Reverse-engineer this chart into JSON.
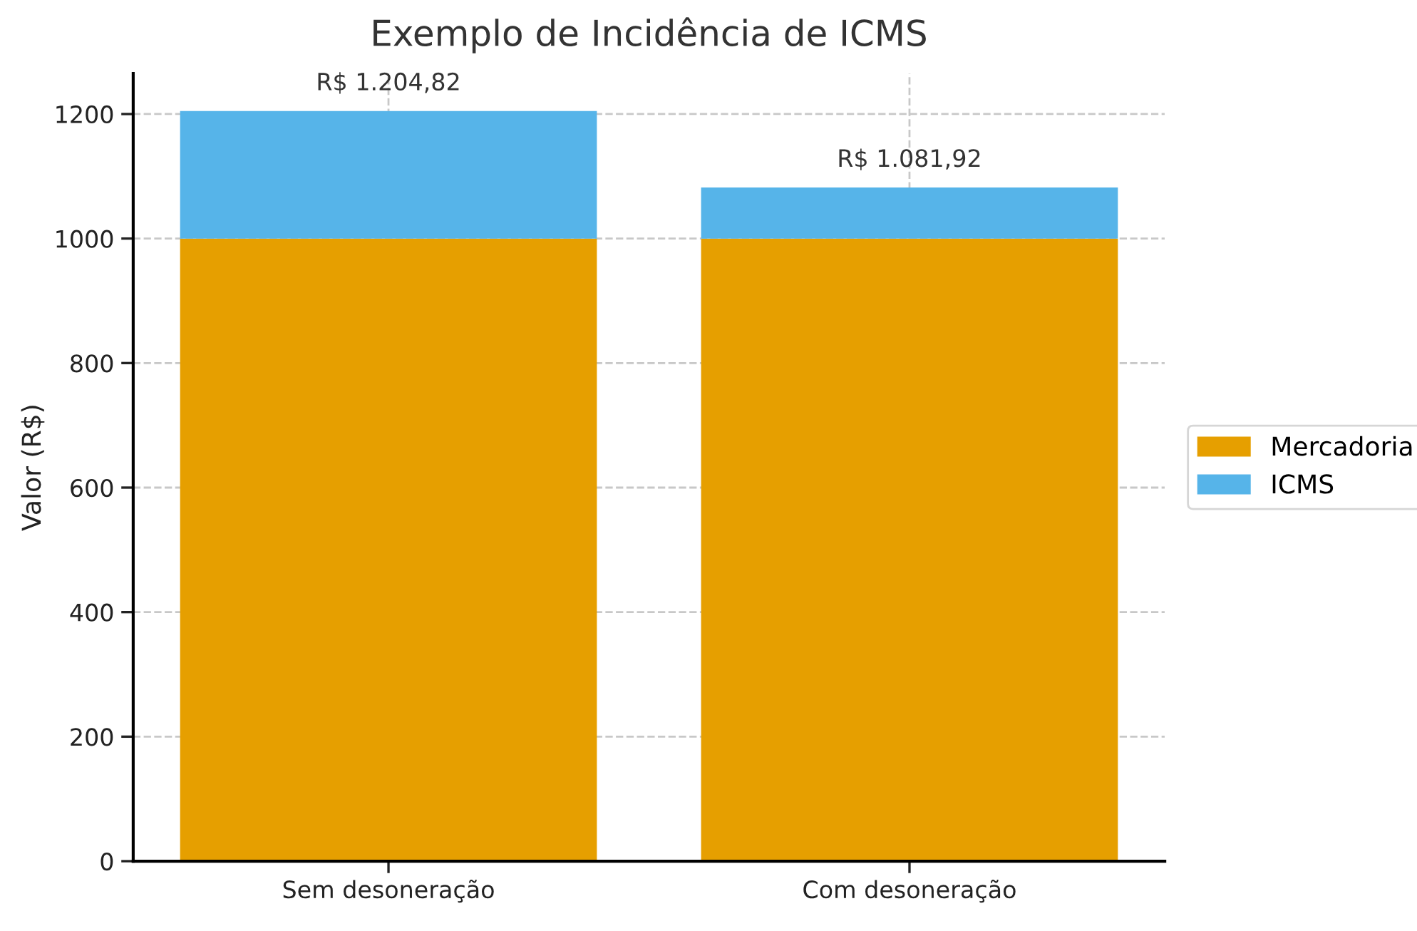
{
  "chart_data": {
    "type": "bar",
    "title": "Exemplo de Incidência de ICMS",
    "ylabel": "Valor (R$)",
    "categories": [
      "Sem desoneração",
      "Com desoneração"
    ],
    "series": [
      {
        "name": "Mercadoria",
        "color": "#e69f00",
        "values": [
          1000,
          1000
        ]
      },
      {
        "name": "ICMS",
        "color": "#56b4e9",
        "values": [
          204.82,
          81.92
        ]
      }
    ],
    "stacked": true,
    "totals": [
      "R$ 1.204,82",
      "R$ 1.081,92"
    ],
    "ylim": [
      0,
      1265
    ],
    "yticks": [
      0,
      200,
      400,
      600,
      800,
      1000,
      1200
    ],
    "grid": true,
    "legend": "right"
  }
}
